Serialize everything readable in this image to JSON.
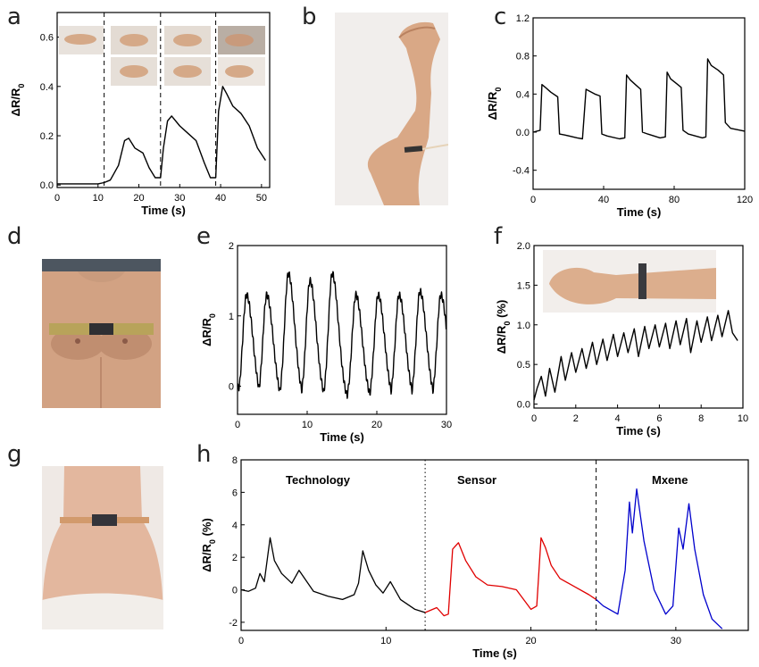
{
  "panels": [
    "a",
    "b",
    "c",
    "d",
    "e",
    "f",
    "g",
    "h"
  ],
  "axis_label_x": "Time (s)",
  "axis_label_y_main": "ΔR/R",
  "axis_label_y_sub": "0",
  "axis_label_y_pct": "(%)",
  "segment_labels": [
    "Technology",
    "Sensor",
    "Mxene"
  ],
  "colors": {
    "technology": "#000000",
    "sensor": "#e00000",
    "mxene": "#0000cc"
  },
  "chart_data": [
    {
      "id": "a",
      "type": "line",
      "xlabel": "Time (s)",
      "ylabel": "ΔR/R0",
      "xlim": [
        0,
        52
      ],
      "ylim": [
        -0.01,
        0.7
      ],
      "xticks": [
        0,
        10,
        20,
        30,
        40,
        50
      ],
      "yticks": [
        0.0,
        0.2,
        0.4,
        0.6
      ],
      "dashed_x": [
        11.5,
        25.3,
        38.8
      ],
      "x": [
        0,
        5,
        10,
        11.5,
        13,
        15,
        16.5,
        17.5,
        19,
        21,
        22.5,
        24,
        25.3,
        26,
        27,
        28,
        30,
        32,
        34,
        36,
        37.5,
        38.8,
        39.5,
        40.5,
        41.5,
        43,
        45,
        47,
        49,
        51
      ],
      "y": [
        0.005,
        0.005,
        0.005,
        0.01,
        0.02,
        0.08,
        0.18,
        0.19,
        0.15,
        0.13,
        0.07,
        0.03,
        0.03,
        0.15,
        0.26,
        0.28,
        0.24,
        0.21,
        0.18,
        0.09,
        0.03,
        0.03,
        0.3,
        0.4,
        0.37,
        0.32,
        0.29,
        0.24,
        0.15,
        0.1
      ]
    },
    {
      "id": "c",
      "type": "line",
      "xlabel": "Time (s)",
      "ylabel": "ΔR/R0",
      "xlim": [
        0,
        120
      ],
      "ylim": [
        -0.6,
        1.2
      ],
      "xticks": [
        0,
        40,
        80,
        120
      ],
      "yticks": [
        -0.4,
        0.0,
        0.4,
        0.8,
        1.2
      ],
      "x": [
        0,
        4,
        5,
        7,
        10,
        14,
        15,
        18,
        25,
        28,
        30,
        32,
        35,
        38,
        39,
        42,
        49,
        52,
        53,
        55,
        58,
        61,
        62,
        65,
        72,
        75,
        76,
        78,
        82,
        84,
        85,
        88,
        96,
        98,
        99,
        101,
        105,
        108,
        109,
        112,
        120
      ],
      "y": [
        0.0,
        0.02,
        0.5,
        0.47,
        0.42,
        0.37,
        -0.02,
        -0.03,
        -0.06,
        -0.07,
        0.45,
        0.43,
        0.4,
        0.38,
        -0.02,
        -0.04,
        -0.07,
        -0.06,
        0.6,
        0.55,
        0.5,
        0.45,
        0.0,
        -0.02,
        -0.06,
        -0.05,
        0.63,
        0.56,
        0.5,
        0.47,
        0.02,
        -0.02,
        -0.06,
        -0.05,
        0.77,
        0.7,
        0.65,
        0.6,
        0.1,
        0.04,
        0.01
      ]
    },
    {
      "id": "e",
      "type": "line",
      "xlabel": "Time (s)",
      "ylabel": "ΔR/R0",
      "xlim": [
        0,
        30
      ],
      "ylim": [
        -0.4,
        2
      ],
      "xticks": [
        0,
        10,
        20,
        30
      ],
      "yticks": [
        0,
        1,
        2
      ],
      "peaks": [
        1.3,
        4.2,
        7.3,
        10.4,
        13.6,
        17.0,
        20.2,
        23.2,
        26.2,
        29.2
      ],
      "peak_values": [
        1.3,
        1.3,
        1.6,
        1.5,
        1.6,
        1.3,
        1.3,
        1.3,
        1.35,
        1.3
      ],
      "trough_value": -0.25
    },
    {
      "id": "f",
      "type": "line",
      "xlabel": "Time (s)",
      "ylabel": "ΔR/R0 (%)",
      "xlim": [
        0,
        10
      ],
      "ylim": [
        -0.05,
        2.0
      ],
      "xticks": [
        0,
        2,
        4,
        6,
        8,
        10
      ],
      "yticks": [
        0.0,
        0.5,
        1.0,
        1.5,
        2.0
      ],
      "x": [
        0,
        0.15,
        0.35,
        0.55,
        0.75,
        1.0,
        1.3,
        1.5,
        1.8,
        2.0,
        2.3,
        2.5,
        2.8,
        3.0,
        3.3,
        3.5,
        3.8,
        4.0,
        4.3,
        4.5,
        4.8,
        5.0,
        5.3,
        5.5,
        5.8,
        6.0,
        6.3,
        6.5,
        6.8,
        7.0,
        7.3,
        7.5,
        7.8,
        8.0,
        8.3,
        8.5,
        8.8,
        9.0,
        9.3,
        9.5,
        9.75
      ],
      "y": [
        0.05,
        0.2,
        0.35,
        0.1,
        0.45,
        0.15,
        0.6,
        0.3,
        0.65,
        0.4,
        0.7,
        0.45,
        0.78,
        0.5,
        0.82,
        0.55,
        0.88,
        0.6,
        0.9,
        0.65,
        0.95,
        0.6,
        0.98,
        0.7,
        1.0,
        0.72,
        1.02,
        0.7,
        1.05,
        0.75,
        1.08,
        0.65,
        1.05,
        0.78,
        1.1,
        0.8,
        1.12,
        0.85,
        1.18,
        0.9,
        0.8
      ]
    },
    {
      "id": "h",
      "type": "line",
      "xlabel": "Time (s)",
      "ylabel": "ΔR/R0 (%)",
      "xlim": [
        0,
        35
      ],
      "ylim": [
        -2.5,
        8
      ],
      "xticks": [
        0,
        10,
        20,
        30
      ],
      "yticks": [
        -2,
        0,
        2,
        4,
        6,
        8
      ],
      "dotted_x": 12.7,
      "dashed_x": 24.5,
      "series": [
        {
          "name": "Technology",
          "color": "#000000",
          "x": [
            0,
            0.5,
            1,
            1.3,
            1.6,
            2.0,
            2.3,
            2.8,
            3.5,
            4.0,
            5,
            6,
            7,
            7.8,
            8.1,
            8.4,
            8.8,
            9.3,
            9.8,
            10.3,
            11,
            12,
            12.7
          ],
          "y": [
            0,
            -0.1,
            0.1,
            1.0,
            0.5,
            3.2,
            1.8,
            1.0,
            0.4,
            1.2,
            -0.1,
            -0.4,
            -0.6,
            -0.3,
            0.4,
            2.4,
            1.2,
            0.3,
            -0.2,
            0.5,
            -0.6,
            -1.2,
            -1.4
          ]
        },
        {
          "name": "Sensor",
          "color": "#e00000",
          "x": [
            12.7,
            13.5,
            14.0,
            14.3,
            14.6,
            15.0,
            15.5,
            16.2,
            17,
            18,
            19,
            20,
            20.4,
            20.7,
            21.0,
            21.4,
            22,
            23,
            24,
            24.5
          ],
          "y": [
            -1.4,
            -1.1,
            -1.6,
            -1.5,
            2.5,
            2.9,
            1.8,
            0.8,
            0.3,
            0.2,
            0.0,
            -1.2,
            -1.0,
            3.2,
            2.6,
            1.5,
            0.7,
            0.2,
            -0.3,
            -0.6
          ]
        },
        {
          "name": "Mxene",
          "color": "#0000cc",
          "x": [
            24.5,
            25,
            26,
            26.5,
            26.8,
            27.0,
            27.3,
            27.8,
            28.5,
            29.3,
            29.8,
            30.2,
            30.5,
            30.9,
            31.3,
            31.9,
            32.5,
            33.2
          ],
          "y": [
            -0.6,
            -1.0,
            -1.5,
            1.2,
            5.4,
            3.5,
            6.2,
            3.0,
            0.0,
            -1.5,
            -1.0,
            3.8,
            2.5,
            5.3,
            2.5,
            -0.3,
            -1.8,
            -2.4
          ]
        }
      ]
    }
  ]
}
